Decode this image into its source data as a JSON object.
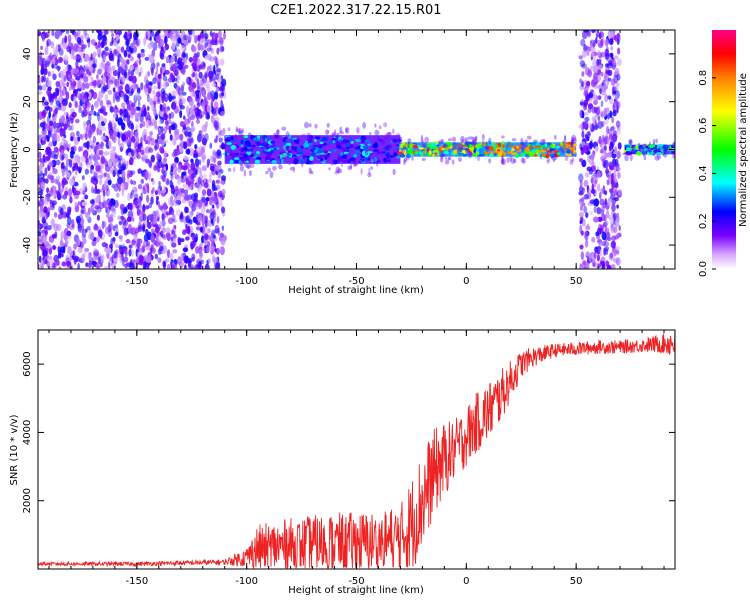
{
  "title": "C2E1.2022.317.22.15.R01",
  "chart_data": [
    {
      "type": "heatmap",
      "xlabel": "Height of straight line (km)",
      "ylabel": "Frequency (Hz)",
      "xlim": [
        -195,
        95
      ],
      "ylim": [
        -50,
        50
      ],
      "xticks": [
        -150,
        -100,
        -50,
        0,
        50
      ],
      "yticks": [
        -40,
        -20,
        0,
        20,
        40
      ],
      "colorbar": {
        "label": "Normalized spectral amplitude",
        "range": [
          0.0,
          1.0
        ],
        "ticks": [
          0.0,
          0.2,
          0.4,
          0.6,
          0.8
        ],
        "colormap": [
          "#ffffff",
          "#7a00ff",
          "#0000ff",
          "#00ffff",
          "#00ff00",
          "#ffff00",
          "#ff8000",
          "#ff0000",
          "#ff00aa"
        ]
      },
      "regions": [
        {
          "x": [
            -195,
            -110
          ],
          "freq": [
            -50,
            50
          ],
          "amplitude": 0.05,
          "pattern": "broadband noise"
        },
        {
          "x": [
            -110,
            -30
          ],
          "freq": [
            -6,
            6
          ],
          "amplitude": 0.35,
          "pattern": "noisy carrier band"
        },
        {
          "x": [
            -30,
            50
          ],
          "freq": [
            -3,
            3
          ],
          "amplitude": 0.7,
          "pattern": "strong carrier line"
        },
        {
          "x": [
            52,
            70
          ],
          "freq": [
            -50,
            50
          ],
          "amplitude": 0.05,
          "pattern": "broadband noise"
        },
        {
          "x": [
            72,
            95
          ],
          "freq": [
            -2,
            2
          ],
          "amplitude": 0.5,
          "pattern": "carrier line"
        }
      ]
    },
    {
      "type": "line",
      "xlabel": "Height of straight line (km)",
      "ylabel": "SNR (10 * v/v)",
      "xlim": [
        -195,
        95
      ],
      "ylim": [
        0,
        7000
      ],
      "xticks": [
        -150,
        -100,
        -50,
        0,
        50
      ],
      "yticks": [
        2000,
        4000,
        6000
      ],
      "color": "#ee2222",
      "series": [
        {
          "x": [
            -195,
            -150,
            -110,
            -100,
            -95,
            -80,
            -60,
            -40,
            -30,
            -25,
            -20,
            -15,
            -10,
            -5,
            0,
            5,
            10,
            15,
            20,
            25,
            30,
            35,
            40,
            50,
            60,
            70,
            80,
            90,
            95
          ],
          "y": [
            150,
            150,
            200,
            350,
            600,
            700,
            750,
            800,
            900,
            1300,
            2000,
            2800,
            3200,
            3500,
            3900,
            4300,
            4600,
            5000,
            5500,
            6000,
            6200,
            6300,
            6400,
            6450,
            6500,
            6500,
            6550,
            6600,
            6650
          ],
          "noise": [
            50,
            60,
            80,
            300,
            700,
            800,
            900,
            900,
            1000,
            1400,
            1500,
            1300,
            1100,
            900,
            900,
            900,
            900,
            800,
            600,
            400,
            300,
            250,
            200,
            200,
            200,
            200,
            200,
            300,
            500
          ]
        }
      ]
    }
  ]
}
